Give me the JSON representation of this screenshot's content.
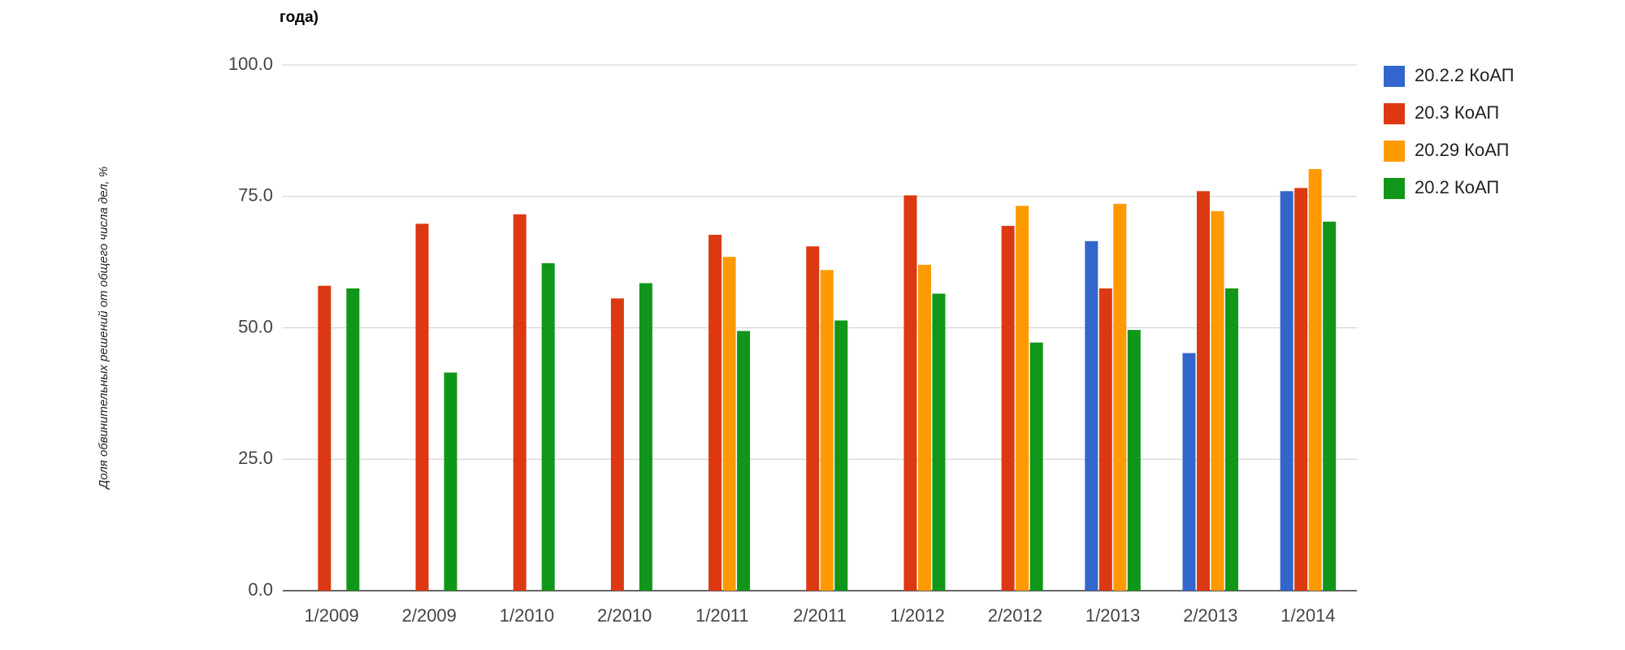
{
  "chart_data": {
    "type": "bar",
    "title": "года)",
    "y_label": "Доля обвинительных решений от общего числа дел, %",
    "categories": [
      "1/2009",
      "2/2009",
      "1/2010",
      "2/2010",
      "1/2011",
      "2/2011",
      "1/2012",
      "2/2012",
      "1/2013",
      "2/2013",
      "1/2014"
    ],
    "series": [
      {
        "name": "20.2.2 КоАП",
        "color": "#3366cc",
        "values": [
          null,
          null,
          null,
          null,
          null,
          null,
          null,
          null,
          66.5,
          45.2,
          76
        ]
      },
      {
        "name": "20.3 КоАП",
        "color": "#dc3912",
        "values": [
          58,
          69.8,
          71.6,
          55.6,
          67.7,
          65.5,
          75.2,
          69.4,
          57.5,
          76,
          76.6
        ]
      },
      {
        "name": "20.29 КоАП",
        "color": "#ff9900",
        "values": [
          null,
          null,
          null,
          null,
          63.5,
          61,
          62,
          73.2,
          73.6,
          72.2,
          80.2
        ]
      },
      {
        "name": "20.2 КоАП",
        "color": "#109618",
        "values": [
          57.5,
          41.5,
          62.3,
          58.5,
          49.4,
          51.4,
          56.5,
          47.2,
          49.6,
          57.5,
          70.2
        ]
      }
    ],
    "ylim": [
      0,
      100
    ],
    "yticks": [
      {
        "value": 0,
        "label": "0.0"
      },
      {
        "value": 25,
        "label": "25.0"
      },
      {
        "value": 50,
        "label": "50.0"
      },
      {
        "value": 75,
        "label": "75.0"
      },
      {
        "value": 100,
        "label": "100.0"
      }
    ],
    "grid": true,
    "legend": "right"
  }
}
